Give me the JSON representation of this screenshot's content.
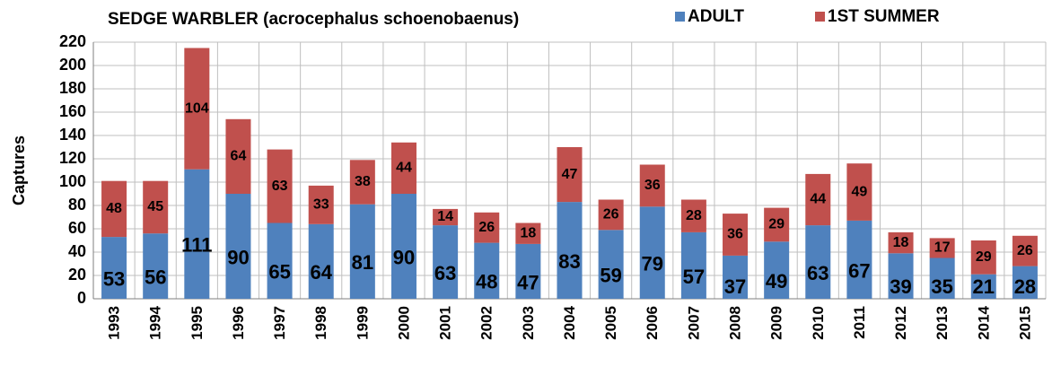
{
  "chart_data": {
    "type": "bar",
    "stacked": true,
    "title": "SEDGE WARBLER (acrocephalus schoenobaenus)",
    "ylabel": "Captures",
    "categories": [
      "1993",
      "1994",
      "1995",
      "1996",
      "1997",
      "1998",
      "1999",
      "2000",
      "2001",
      "2002",
      "2003",
      "2004",
      "2005",
      "2006",
      "2007",
      "2008",
      "2009",
      "2010",
      "2011",
      "2012",
      "2013",
      "2014",
      "2015"
    ],
    "series": [
      {
        "name": "ADULT",
        "color": "#4f81bd",
        "values": [
          53,
          56,
          111,
          90,
          65,
          64,
          81,
          90,
          63,
          48,
          47,
          83,
          59,
          79,
          57,
          37,
          49,
          63,
          67,
          39,
          35,
          21,
          28
        ]
      },
      {
        "name": "1ST SUMMER",
        "color": "#c0504d",
        "values": [
          48,
          45,
          104,
          64,
          63,
          33,
          38,
          44,
          14,
          26,
          18,
          47,
          26,
          36,
          28,
          36,
          29,
          44,
          49,
          18,
          17,
          29,
          26
        ]
      }
    ],
    "ylim": [
      0,
      220
    ],
    "yticks": [
      0,
      20,
      40,
      60,
      80,
      100,
      120,
      140,
      160,
      180,
      200,
      220
    ],
    "grid": true,
    "legend": "top-right"
  }
}
